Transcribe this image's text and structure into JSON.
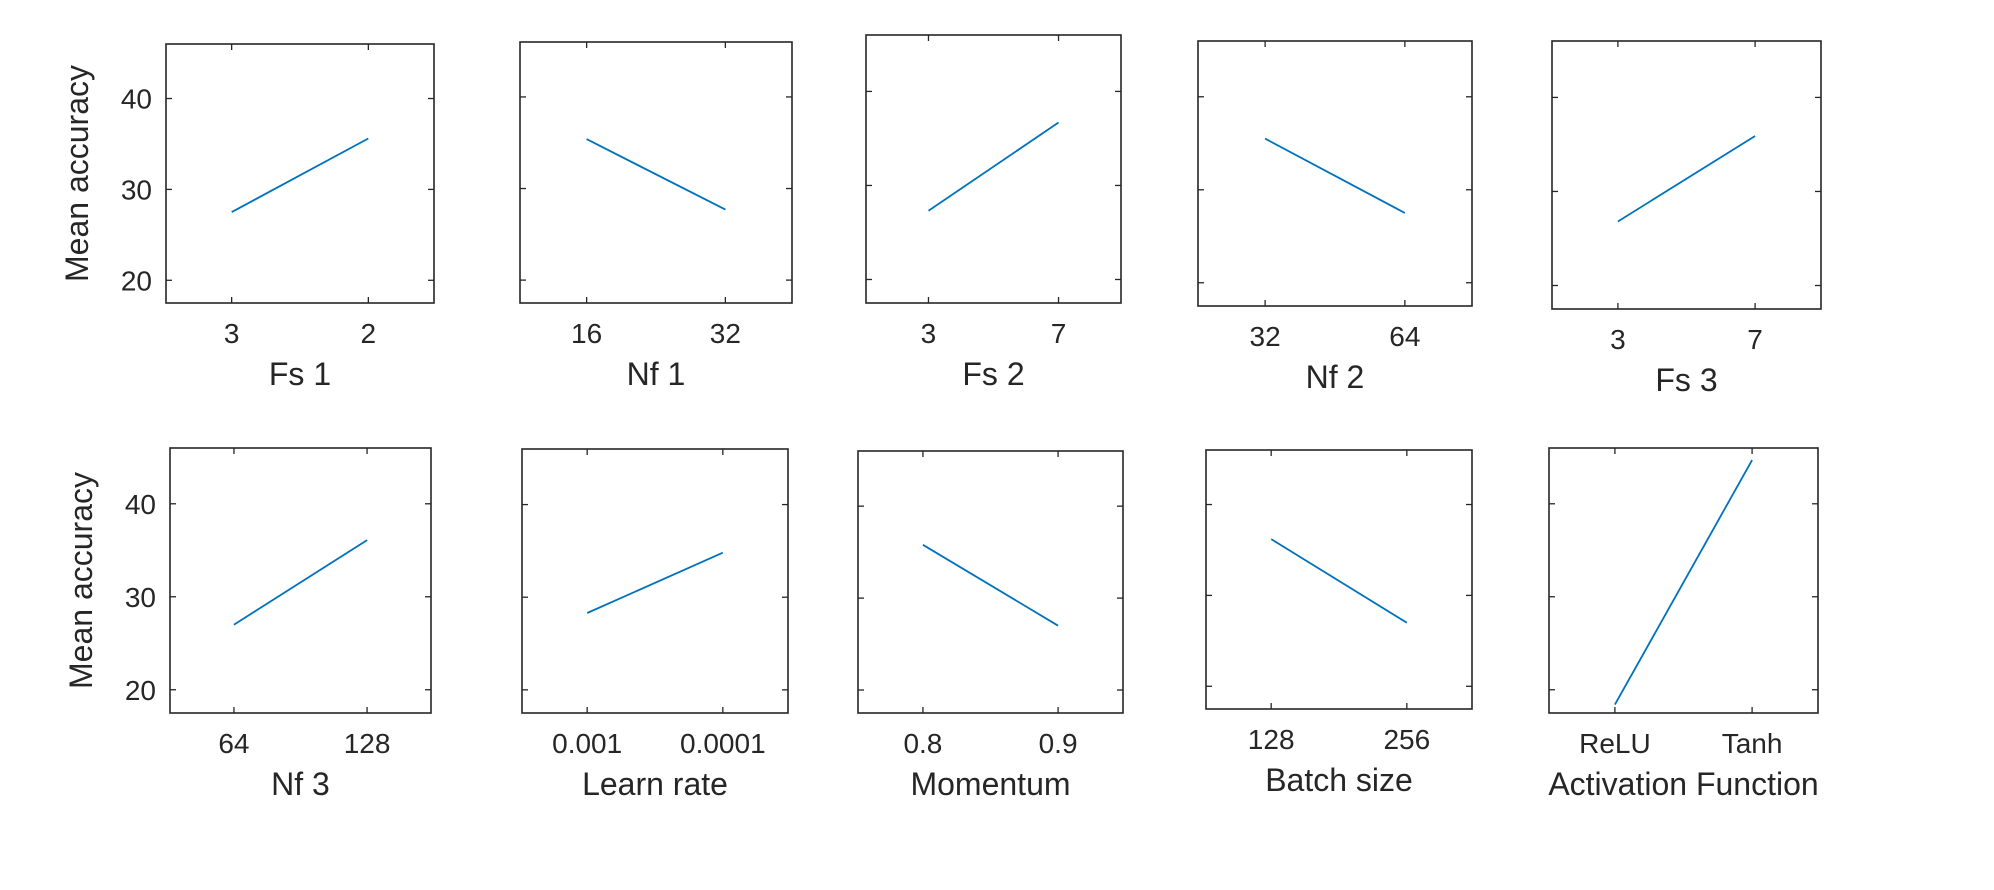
{
  "figure": {
    "ylabel": "Mean accuracy"
  },
  "colors": {
    "line": "#0072BD",
    "axis": "#262626",
    "background": "#ffffff"
  },
  "chart_data": [
    {
      "type": "line",
      "xlabel": "Fs 1",
      "ylabel": "Mean accuracy",
      "categories": [
        "3",
        "2"
      ],
      "values": [
        27.5,
        35.6
      ],
      "ylim": [
        17.5,
        46
      ],
      "yticks": [
        20,
        30,
        40
      ],
      "grid": false
    },
    {
      "type": "line",
      "xlabel": "Nf 1",
      "ylabel": "",
      "categories": [
        "16",
        "32"
      ],
      "values": [
        35.4,
        27.7
      ],
      "ylim": [
        17.5,
        46
      ],
      "yticks": [],
      "grid": false
    },
    {
      "type": "line",
      "xlabel": "Fs 2",
      "ylabel": "",
      "categories": [
        "3",
        "7"
      ],
      "values": [
        27.3,
        36.7
      ],
      "ylim": [
        17.5,
        46
      ],
      "yticks": [],
      "grid": false
    },
    {
      "type": "line",
      "xlabel": "Nf 2",
      "ylabel": "",
      "categories": [
        "32",
        "64"
      ],
      "values": [
        35.5,
        27.5
      ],
      "ylim": [
        17.5,
        46
      ],
      "yticks": [],
      "grid": false
    },
    {
      "type": "line",
      "xlabel": "Fs 3",
      "ylabel": "",
      "categories": [
        "3",
        "7"
      ],
      "values": [
        26.8,
        35.9
      ],
      "ylim": [
        17.5,
        46
      ],
      "yticks": [],
      "grid": false
    },
    {
      "type": "line",
      "xlabel": "Nf 3",
      "ylabel": "Mean accuracy",
      "categories": [
        "64",
        "128"
      ],
      "values": [
        27.0,
        36.1
      ],
      "ylim": [
        17.5,
        46
      ],
      "yticks": [
        20,
        30,
        40
      ],
      "grid": false
    },
    {
      "type": "line",
      "xlabel": "Learn rate",
      "ylabel": "",
      "categories": [
        "0.001",
        "0.0001"
      ],
      "values": [
        28.3,
        34.8
      ],
      "ylim": [
        17.5,
        46
      ],
      "yticks": [],
      "grid": false
    },
    {
      "type": "line",
      "xlabel": "Momentum",
      "ylabel": "",
      "categories": [
        "0.8",
        "0.9"
      ],
      "values": [
        35.8,
        27.0
      ],
      "ylim": [
        17.5,
        46
      ],
      "yticks": [],
      "grid": false
    },
    {
      "type": "line",
      "xlabel": "Batch size",
      "ylabel": "",
      "categories": [
        "128",
        "256"
      ],
      "values": [
        36.2,
        27.0
      ],
      "ylim": [
        17.5,
        46
      ],
      "yticks": [],
      "grid": false
    },
    {
      "type": "line",
      "xlabel": "Activation Function",
      "ylabel": "",
      "categories": [
        "ReLU",
        "Tanh"
      ],
      "values": [
        18.4,
        44.7
      ],
      "ylim": [
        17.5,
        46
      ],
      "yticks": [],
      "grid": false
    }
  ]
}
